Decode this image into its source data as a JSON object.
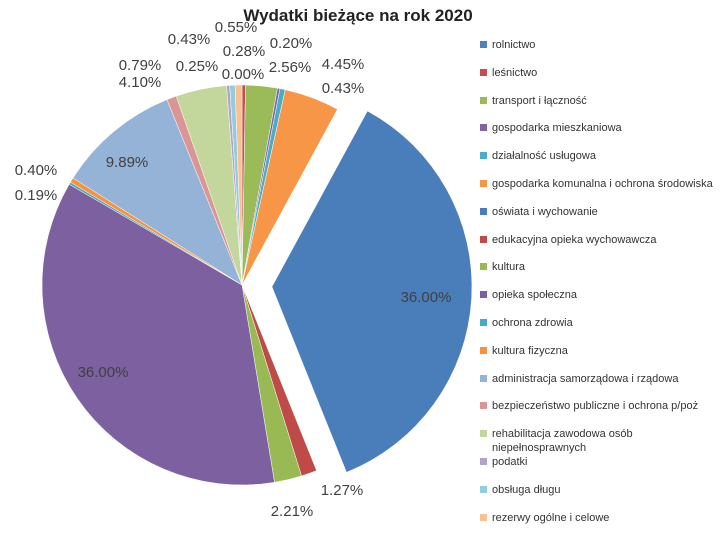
{
  "chart_data": {
    "type": "pie",
    "title": "Wydatki bieżące na rok 2020",
    "categories": [
      "rolnictwo",
      "leśnictwo",
      "transport i łączność",
      "gospodarka mieszkaniowa",
      "działalność usługowa",
      "gospodarka komunalna i ochrona środowiska",
      "oświata i wychowanie",
      "edukacyjna opieka wychowawcza",
      "kultura",
      "opieka społeczna",
      "ochrona zdrowia",
      "kultura fizyczna",
      "administracja samorządowa i rządowa",
      "bezpieczeństwo publiczne i ochrona p/poż",
      "rehabilitacja zawodowa osób niepełnosprawnych",
      "podatki",
      "obsługa długu",
      "rezerwy ogólne i celowe"
    ],
    "values": [
      0,
      0.28,
      2.56,
      0.2,
      0.43,
      4.45,
      36,
      1.27,
      2.21,
      36,
      0.19,
      0.4,
      9.89,
      0.79,
      4.1,
      0.25,
      0.43,
      0.55
    ],
    "value_labels": [
      "0.00%",
      "0.28%",
      "2.56%",
      "0.20%",
      "0.43%",
      "4.45%",
      "36.00%",
      "1.27%",
      "2.21%",
      "36.00%",
      "0.19%",
      "0.40%",
      "9.89%",
      "0.79%",
      "4.10%",
      "0.25%",
      "0.43%",
      "0.55%"
    ],
    "colors": [
      "#4F81BD",
      "#C0504D",
      "#9BBB59",
      "#8064A2",
      "#4BACC6",
      "#F79646",
      "#4A7EBB",
      "#BE4B48",
      "#98B954",
      "#7D60A0",
      "#46AAC5",
      "#F69240",
      "#95B3D7",
      "#D99694",
      "#C3D69B",
      "#B3A2C7",
      "#93CDDD",
      "#FAC090"
    ],
    "legend": "right"
  }
}
